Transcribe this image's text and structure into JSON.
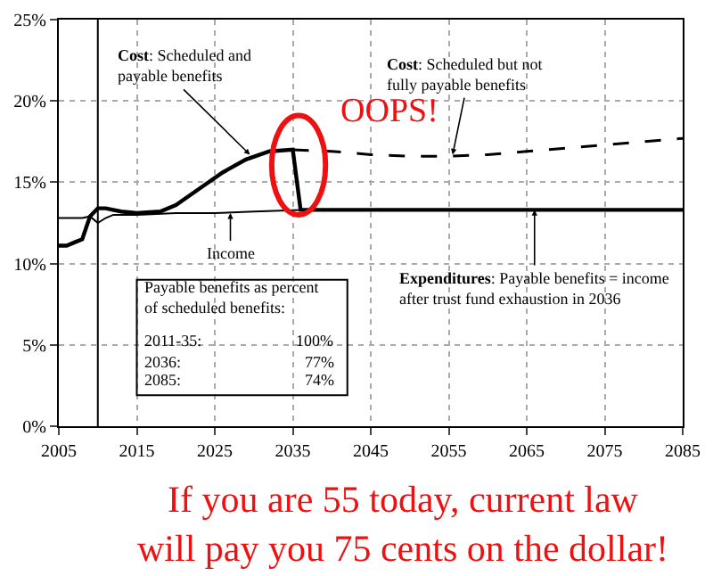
{
  "chart_data": {
    "type": "line",
    "xlim": [
      2005,
      2085
    ],
    "xticks": [
      2005,
      2015,
      2025,
      2035,
      2045,
      2055,
      2065,
      2075,
      2085
    ],
    "ylim": [
      0,
      25
    ],
    "yticks": [
      {
        "value": 0,
        "label": "0%"
      },
      {
        "value": 5,
        "label": "5%"
      },
      {
        "value": 10,
        "label": "10%"
      },
      {
        "value": 15,
        "label": "15%"
      },
      {
        "value": 20,
        "label": "20%"
      },
      {
        "value": 25,
        "label": "25%"
      }
    ],
    "grid": true,
    "marker": "none",
    "series": [
      {
        "color": "#000000",
        "line_style": "solid",
        "x": [
          2005,
          2006,
          2007,
          2008,
          2009,
          2010,
          2011,
          2013,
          2015,
          2018,
          2020,
          2023,
          2026,
          2029,
          2032,
          2035,
          2036,
          2045,
          2055,
          2065,
          2075,
          2085
        ],
        "values": [
          11.1,
          11.1,
          11.3,
          11.5,
          12.9,
          13.4,
          13.4,
          13.2,
          13.1,
          13.2,
          13.6,
          14.6,
          15.6,
          16.4,
          16.9,
          17.0,
          13.3,
          13.3,
          13.3,
          13.3,
          13.3,
          13.3
        ]
      },
      {
        "color": "#000000",
        "line_style": "dashed",
        "x": [
          2035,
          2040,
          2045,
          2050,
          2055,
          2060,
          2065,
          2070,
          2075,
          2080,
          2085
        ],
        "values": [
          17.0,
          16.9,
          16.7,
          16.6,
          16.6,
          16.7,
          16.9,
          17.1,
          17.3,
          17.5,
          17.7
        ]
      },
      {
        "color": "#000000",
        "line_style": "solid",
        "x": [
          2005,
          2008,
          2009,
          2010,
          2011,
          2012,
          2015,
          2020,
          2025,
          2030,
          2036
        ],
        "values": [
          12.8,
          12.8,
          12.9,
          12.5,
          12.8,
          13.0,
          13.0,
          13.1,
          13.1,
          13.2,
          13.3
        ]
      }
    ],
    "ref_lines": [
      {
        "axis": "x",
        "value": 2010,
        "color": "#000000"
      }
    ],
    "annotations": [
      {
        "text": "Cost: Scheduled and payable benefits",
        "x": 2029.5,
        "y": 16.7
      },
      "OOPS!",
      {
        "text": "Cost: Scheduled but not fully payable benefits",
        "x": 2055.5,
        "y": 16.7
      },
      {
        "text": "Income",
        "x": 2027,
        "y": 13.1
      },
      {
        "text": "Expenditures: Payable benefits = income after trust fund exhaustion in 2036",
        "x": 2066,
        "y": 13.3
      },
      "Payable benefits as percent of scheduled benefits:",
      "2011-35:",
      "100%",
      "2036:",
      "77%",
      "2085:",
      "74%",
      "If you are 55 today, current law will pay you 75 cents on the dollar!"
    ]
  }
}
